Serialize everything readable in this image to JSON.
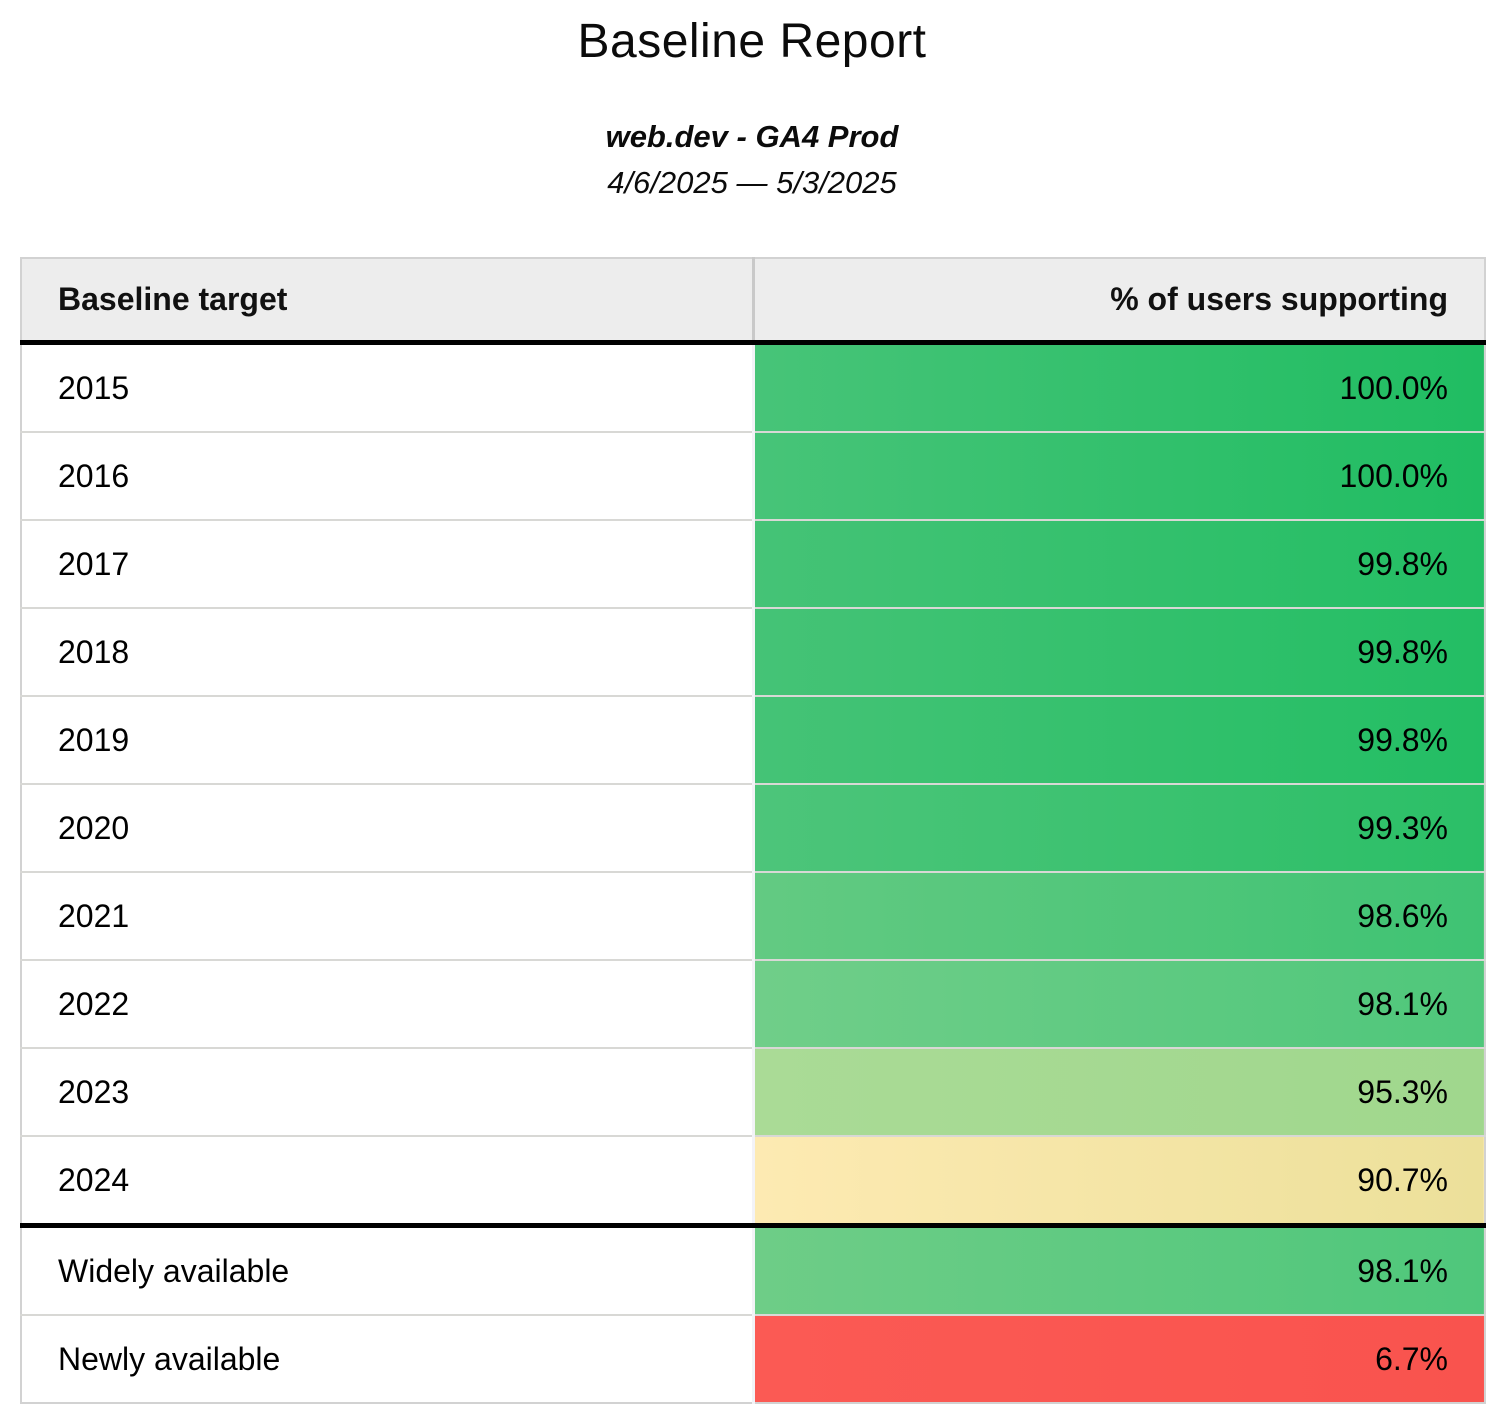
{
  "report": {
    "title": "Baseline Report",
    "subtitle": "web.dev - GA4 Prod",
    "date_range": "4/6/2025 — 5/3/2025"
  },
  "table": {
    "columns": [
      {
        "label": "Baseline target"
      },
      {
        "label": "% of users supporting"
      }
    ],
    "header_bg": "#ededed",
    "rows": [
      {
        "label": "2015",
        "value": "100.0%",
        "bg": {
          "from": "#47c478",
          "to": "#20bd62"
        }
      },
      {
        "label": "2016",
        "value": "100.0%",
        "bg": {
          "from": "#47c478",
          "to": "#20bd62"
        }
      },
      {
        "label": "2017",
        "value": "99.8%",
        "bg": {
          "from": "#45c376",
          "to": "#23be64"
        }
      },
      {
        "label": "2018",
        "value": "99.8%",
        "bg": {
          "from": "#45c376",
          "to": "#23be64"
        }
      },
      {
        "label": "2019",
        "value": "99.8%",
        "bg": {
          "from": "#45c376",
          "to": "#23be64"
        }
      },
      {
        "label": "2020",
        "value": "99.3%",
        "bg": {
          "from": "#4dc57a",
          "to": "#2bbf67"
        }
      },
      {
        "label": "2021",
        "value": "98.6%",
        "bg": {
          "from": "#63ca82",
          "to": "#3fc373"
        }
      },
      {
        "label": "2022",
        "value": "98.1%",
        "bg": {
          "from": "#70ce89",
          "to": "#4fc77b"
        }
      },
      {
        "label": "2023",
        "value": "95.3%",
        "bg": {
          "from": "#aadb96",
          "to": "#a0d78d"
        }
      },
      {
        "label": "2024",
        "value": "90.7%",
        "bg": {
          "from": "#fdeab2",
          "to": "#ece09a"
        }
      },
      {
        "label": "Widely available",
        "value": "98.1%",
        "bg": {
          "from": "#6ecd87",
          "to": "#4fc77b"
        }
      },
      {
        "label": "Newly available",
        "value": "6.7%",
        "bg": {
          "from": "#fb5a54",
          "to": "#f9534e"
        }
      }
    ]
  }
}
